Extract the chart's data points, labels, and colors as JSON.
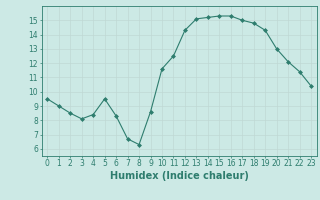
{
  "x": [
    0,
    1,
    2,
    3,
    4,
    5,
    6,
    7,
    8,
    9,
    10,
    11,
    12,
    13,
    14,
    15,
    16,
    17,
    18,
    19,
    20,
    21,
    22,
    23
  ],
  "y": [
    9.5,
    9.0,
    8.5,
    8.1,
    8.4,
    9.5,
    8.3,
    6.7,
    6.3,
    8.6,
    11.6,
    12.5,
    14.3,
    15.1,
    15.2,
    15.3,
    15.3,
    15.0,
    14.8,
    14.3,
    13.0,
    12.1,
    11.4,
    10.4
  ],
  "line_color": "#2e7d6e",
  "marker": "D",
  "marker_size": 2.0,
  "xlabel": "Humidex (Indice chaleur)",
  "xlim": [
    -0.5,
    23.5
  ],
  "ylim": [
    5.5,
    16.0
  ],
  "yticks": [
    6,
    7,
    8,
    9,
    10,
    11,
    12,
    13,
    14,
    15
  ],
  "xticks": [
    0,
    1,
    2,
    3,
    4,
    5,
    6,
    7,
    8,
    9,
    10,
    11,
    12,
    13,
    14,
    15,
    16,
    17,
    18,
    19,
    20,
    21,
    22,
    23
  ],
  "bg_color": "#cce9e5",
  "grid_color": "#c0d8d4",
  "axis_color": "#2e7d6e",
  "tick_label_fontsize": 5.5,
  "xlabel_fontsize": 7.0
}
